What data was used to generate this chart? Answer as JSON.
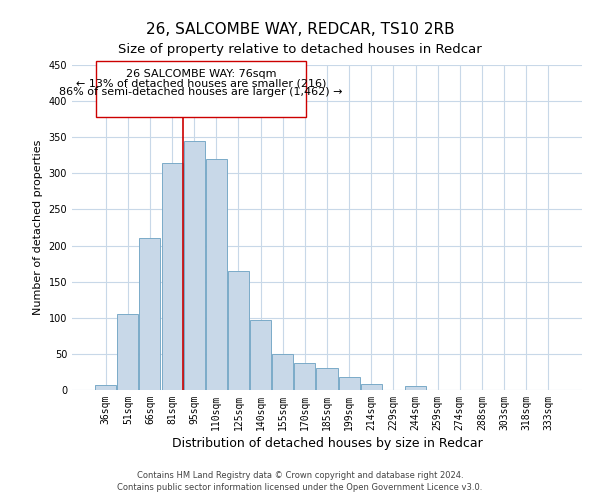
{
  "title": "26, SALCOMBE WAY, REDCAR, TS10 2RB",
  "subtitle": "Size of property relative to detached houses in Redcar",
  "xlabel": "Distribution of detached houses by size in Redcar",
  "ylabel": "Number of detached properties",
  "bar_labels": [
    "36sqm",
    "51sqm",
    "66sqm",
    "81sqm",
    "95sqm",
    "110sqm",
    "125sqm",
    "140sqm",
    "155sqm",
    "170sqm",
    "185sqm",
    "199sqm",
    "214sqm",
    "229sqm",
    "244sqm",
    "259sqm",
    "274sqm",
    "288sqm",
    "303sqm",
    "318sqm",
    "333sqm"
  ],
  "bar_values": [
    7,
    105,
    210,
    315,
    345,
    320,
    165,
    97,
    50,
    37,
    30,
    18,
    9,
    0,
    5,
    0,
    0,
    0,
    0,
    0,
    0
  ],
  "bar_color": "#c8d8e8",
  "bar_edge_color": "#7aaac8",
  "vline_color": "#cc0000",
  "vline_x_index": 3,
  "annotation_line1": "26 SALCOMBE WAY: 76sqm",
  "annotation_line2": "← 13% of detached houses are smaller (216)",
  "annotation_line3": "86% of semi-detached houses are larger (1,462) →",
  "ylim": [
    0,
    450
  ],
  "yticks": [
    0,
    50,
    100,
    150,
    200,
    250,
    300,
    350,
    400,
    450
  ],
  "footer_line1": "Contains HM Land Registry data © Crown copyright and database right 2024.",
  "footer_line2": "Contains public sector information licensed under the Open Government Licence v3.0.",
  "title_fontsize": 11,
  "subtitle_fontsize": 9.5,
  "xlabel_fontsize": 9,
  "ylabel_fontsize": 8,
  "tick_fontsize": 7,
  "footer_fontsize": 6,
  "annotation_fontsize": 8,
  "background_color": "#ffffff",
  "grid_color": "#c8d8e8"
}
